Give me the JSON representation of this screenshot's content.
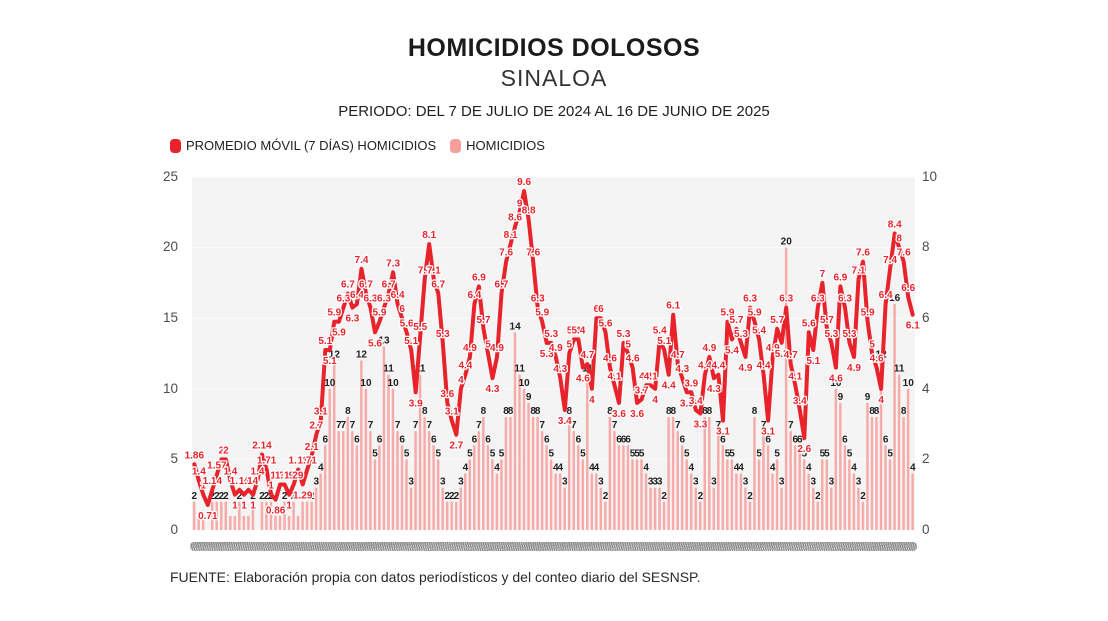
{
  "chart_data": {
    "type": "combo_bar_line",
    "title": "HOMICIDIOS DOLOSOS",
    "subtitle": "SINALOA",
    "period_label": "PERIODO: DEL 7 DE JULIO DE 2024 AL 16 DE JUNIO DE 2025",
    "source": "FUENTE: Elaboración propia con datos periodísticos y del conteo diario del SESNSP.",
    "x_start": "2024-07-07",
    "x_end": "2025-06-16",
    "x_axis_style": "daily date labels, rendered too small to read (gray strip)",
    "plot_background": "#f4f4f4",
    "left_axis": {
      "min": 0,
      "max": 25,
      "ticks_top_to_bottom": [
        25,
        20,
        15,
        10,
        5,
        0
      ],
      "applies_to": "HOMICIDIOS"
    },
    "right_axis": {
      "min": 0,
      "max": 10,
      "ticks_top_to_bottom": [
        10,
        8,
        6,
        4,
        2,
        0
      ],
      "applies_to": "PROMEDIO MÓVIL (7 DÍAS) HOMICIDIOS"
    },
    "legend": [
      {
        "label": "PROMEDIO MÓVIL (7 DÍAS) HOMICIDIOS",
        "color": "#e8232b",
        "swatch": "red-rounded-square"
      },
      {
        "label": "HOMICIDIOS",
        "color": "#f89e9b",
        "swatch": "pink-rounded-square"
      }
    ],
    "series": [
      {
        "name": "PROMEDIO MÓVIL (7 DÍAS) HOMICIDIOS",
        "type": "line",
        "axis": "right",
        "color": "#e8232b",
        "values": [
          1.86,
          1.4,
          1,
          0.71,
          1.14,
          1.57,
          2,
          2,
          1.4,
          1,
          1.14,
          1,
          1.14,
          1,
          1.4,
          2.14,
          1.71,
          1,
          0.86,
          1.29,
          1.29,
          1,
          1.29,
          1.71,
          1.29,
          1.71,
          2.1,
          2.7,
          3.1,
          5.1,
          5.1,
          5.9,
          5.9,
          6.3,
          6.7,
          6.3,
          6.4,
          7.4,
          6.7,
          6.3,
          5.6,
          5.9,
          6.3,
          6.7,
          7.3,
          6.4,
          6,
          5.6,
          5.1,
          3.9,
          5.5,
          7.1,
          8.1,
          7.1,
          6.7,
          5.3,
          3.6,
          3.1,
          2.7,
          4,
          4.4,
          4.9,
          6.4,
          6.9,
          5.7,
          5,
          4.3,
          4.9,
          6.7,
          7.6,
          8.1,
          8.6,
          9,
          9.6,
          8.8,
          7.6,
          6.3,
          5.9,
          5.3,
          5.3,
          4.9,
          4.3,
          3.4,
          5,
          5.4,
          5.4,
          4.6,
          4.7,
          4,
          6,
          6,
          5.6,
          4.6,
          4.1,
          3.6,
          5.3,
          5,
          4.6,
          3.6,
          3.7,
          4.1,
          4.1,
          4,
          5.4,
          5.1,
          4.4,
          6.1,
          4.7,
          4.3,
          3.9,
          3.9,
          3.4,
          3.3,
          4.4,
          4.9,
          4.3,
          4.4,
          3.1,
          5.9,
          5.4,
          5.7,
          5.3,
          4.9,
          6.3,
          5.9,
          5.4,
          4.4,
          3.1,
          4.9,
          5.7,
          5.3,
          6.3,
          4.7,
          4.1,
          3.4,
          2.6,
          5.6,
          5.1,
          6.3,
          7,
          5.7,
          5.3,
          4.6,
          6.9,
          6.3,
          5.3,
          4.9,
          7.1,
          7.6,
          5.9,
          5,
          4.6,
          4,
          6.4,
          7.4,
          8.4,
          8,
          7.6,
          6.6,
          6.1
        ]
      },
      {
        "name": "HOMICIDIOS",
        "type": "bar",
        "axis": "left",
        "color": "#f7aba8",
        "values": [
          2,
          1,
          1,
          0,
          2,
          2,
          2,
          2,
          1,
          1,
          2,
          1,
          1,
          2,
          0,
          2,
          2,
          2,
          1,
          1,
          2,
          1,
          2,
          1,
          2,
          2,
          2,
          3,
          4,
          6,
          10,
          12,
          7,
          7,
          8,
          7,
          6,
          12,
          10,
          7,
          5,
          6,
          13,
          11,
          10,
          7,
          6,
          5,
          3,
          7,
          11,
          8,
          7,
          6,
          5,
          3,
          2,
          2,
          2,
          3,
          4,
          5,
          6,
          7,
          8,
          6,
          5,
          4,
          5,
          8,
          8,
          14,
          11,
          10,
          9,
          8,
          8,
          7,
          6,
          5,
          4,
          4,
          3,
          8,
          7,
          6,
          5,
          11,
          4,
          4,
          3,
          2,
          8,
          7,
          6,
          6,
          6,
          5,
          5,
          5,
          4,
          3,
          3,
          3,
          2,
          8,
          8,
          7,
          6,
          5,
          4,
          3,
          2,
          8,
          8,
          3,
          7,
          6,
          5,
          5,
          4,
          4,
          3,
          2,
          8,
          5,
          7,
          6,
          4,
          5,
          3,
          20,
          7,
          6,
          6,
          5,
          4,
          3,
          2,
          5,
          5,
          3,
          10,
          9,
          6,
          5,
          4,
          3,
          2,
          9,
          8,
          8,
          12,
          6,
          5,
          16,
          11,
          8,
          10,
          4
        ]
      }
    ]
  }
}
